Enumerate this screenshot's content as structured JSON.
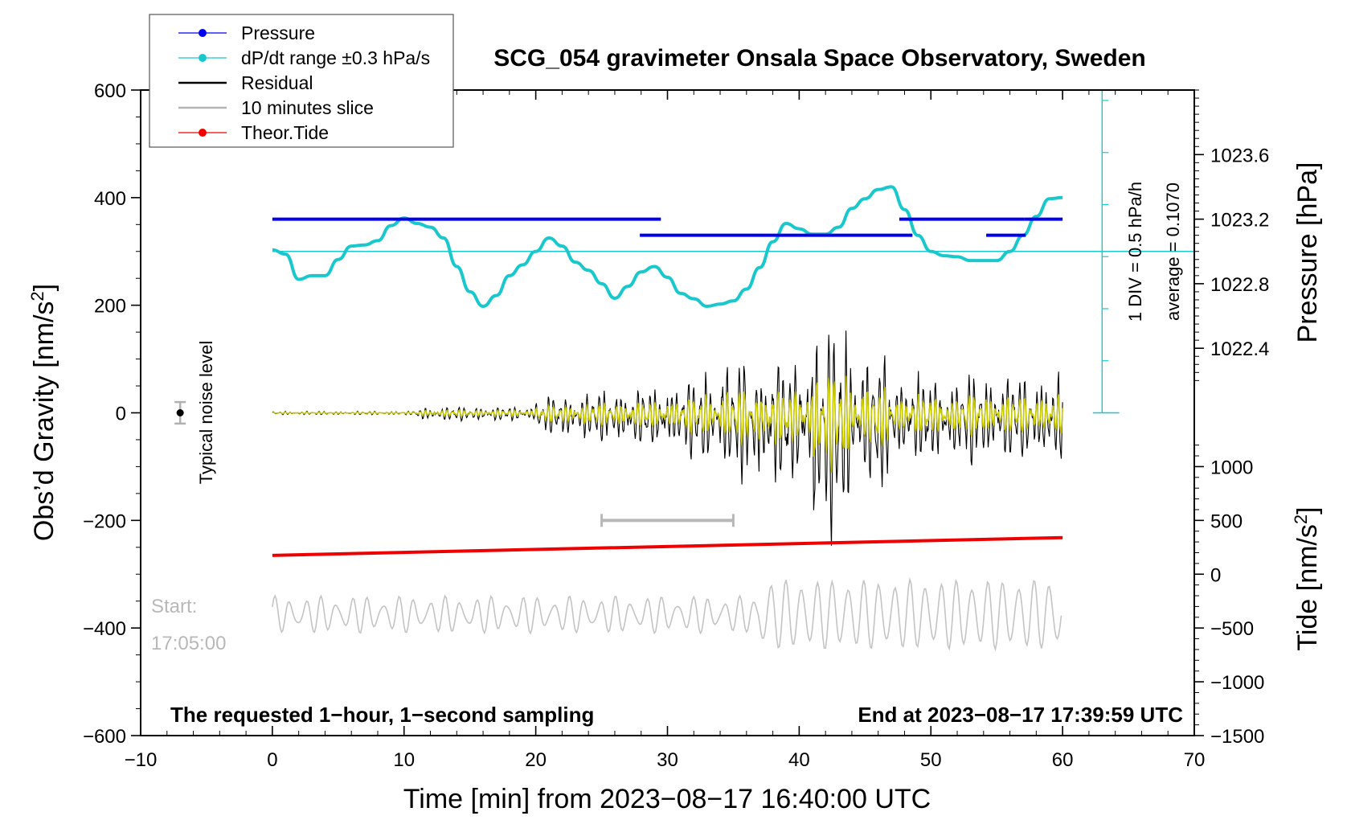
{
  "chart_data": {
    "type": "line",
    "title": "SCG_054 gravimeter Onsala Space Observatory, Sweden",
    "xlabel": "Time [min] from 2023−08−17 16:40:00 UTC",
    "ylabel_left": "Obs’d Gravity [nm/s",
    "ylabel_left_sup": "2",
    "ylabel_left_close": "]",
    "ylabel_right_top": "Pressure [hPa]",
    "ylabel_right_bottom": "Tide [nm/s",
    "ylabel_right_bottom_sup": "2",
    "ylabel_right_bottom_close": "]",
    "xlim": [
      -10,
      70
    ],
    "ylim": [
      -600,
      600
    ],
    "x_ticks": [
      {
        "v": -10,
        "label": "−10"
      },
      {
        "v": 0,
        "label": "0"
      },
      {
        "v": 10,
        "label": "10"
      },
      {
        "v": 20,
        "label": "20"
      },
      {
        "v": 30,
        "label": "30"
      },
      {
        "v": 40,
        "label": "40"
      },
      {
        "v": 50,
        "label": "50"
      },
      {
        "v": 60,
        "label": "60"
      },
      {
        "v": 70,
        "label": "70"
      }
    ],
    "y_ticks": [
      {
        "v": 600,
        "label": "600"
      },
      {
        "v": 400,
        "label": "400"
      },
      {
        "v": 200,
        "label": "200"
      },
      {
        "v": 0,
        "label": "0"
      },
      {
        "v": -200,
        "label": "−200"
      },
      {
        "v": -400,
        "label": "−400"
      },
      {
        "v": -600,
        "label": "−600"
      }
    ],
    "pressure_ticks": [
      {
        "v": 1023.6,
        "label": "1023.6"
      },
      {
        "v": 1023.2,
        "label": "1023.2"
      },
      {
        "v": 1022.8,
        "label": "1022.8"
      },
      {
        "v": 1022.4,
        "label": "1022.4"
      }
    ],
    "pressure_axis": {
      "value_at_y0": 1022.0,
      "value_at_y600": 1024.0
    },
    "tide_ticks": [
      {
        "v": 1000,
        "label": "1000"
      },
      {
        "v": 500,
        "label": "500"
      },
      {
        "v": 0,
        "label": "0"
      },
      {
        "v": -500,
        "label": "−500"
      },
      {
        "v": -1000,
        "label": "−1000"
      },
      {
        "v": -1500,
        "label": "−1500"
      }
    ],
    "tide_axis": {
      "value_at_y0": 1500,
      "value_at_yneg600": -1500
    },
    "legend": [
      {
        "label": "Pressure",
        "color": "#0000ee",
        "marker": true
      },
      {
        "label": "dP/dt range ±0.3 hPa/s",
        "color": "#19c8cc",
        "marker": true
      },
      {
        "label": "Residual",
        "color": "#000000",
        "marker": false
      },
      {
        "label": "10 minutes slice",
        "color": "#b4b4b4",
        "marker": false
      },
      {
        "label": "Theor.Tide",
        "color": "#ee0000",
        "marker": true
      }
    ],
    "series": [
      {
        "name": "Pressure",
        "color": "#0000ee",
        "unit": "hPa",
        "segments": [
          {
            "x": [
              0,
              29.5
            ],
            "value": 1023.2
          },
          {
            "x": [
              27.9,
              48.6
            ],
            "value": 1023.1
          },
          {
            "x": [
              47.6,
              57.1
            ],
            "value": 1023.2
          },
          {
            "x": [
              54.2,
              57.2
            ],
            "value": 1023.1
          },
          {
            "x": [
              57.1,
              60
            ],
            "value": 1023.2
          }
        ]
      },
      {
        "name": "dP/dt range ±0.3 hPa/s",
        "color": "#19c8cc",
        "unit": "nm/s2 (plotted)",
        "x": [
          0,
          1,
          2,
          3,
          4,
          5,
          6,
          7,
          8,
          9,
          10,
          11,
          12,
          13,
          14,
          15,
          16,
          17,
          18,
          19,
          20,
          21,
          22,
          23,
          24,
          25,
          26,
          27,
          28,
          29,
          30,
          31,
          32,
          33,
          34,
          35,
          36,
          37,
          38,
          39,
          40,
          41,
          42,
          43,
          44,
          45,
          46,
          47,
          48,
          49,
          50,
          51,
          52,
          53,
          54,
          55,
          56,
          57,
          58,
          59,
          60
        ],
        "values": [
          303,
          295,
          248,
          255,
          255,
          285,
          310,
          312,
          320,
          348,
          362,
          352,
          345,
          325,
          272,
          225,
          198,
          218,
          255,
          275,
          300,
          325,
          310,
          280,
          265,
          240,
          213,
          235,
          262,
          272,
          252,
          222,
          212,
          198,
          202,
          208,
          230,
          270,
          318,
          352,
          342,
          332,
          332,
          345,
          380,
          398,
          415,
          420,
          378,
          330,
          300,
          292,
          290,
          283,
          283,
          283,
          300,
          330,
          365,
          398,
          400
        ]
      },
      {
        "name": "Theor.Tide",
        "color": "#ee0000",
        "unit": "nm/s2",
        "x": [
          0,
          60
        ],
        "values": [
          -265,
          -232
        ]
      }
    ],
    "noise_marker": {
      "label": "Typical noise level",
      "x": -7,
      "y": 0,
      "error": 20
    },
    "slice_bar": {
      "x": [
        25,
        35
      ],
      "y": -200
    },
    "baseline_pressure": {
      "y": 300
    },
    "div_scale": {
      "label_div": "1 DIV = 0.5 hPa/h",
      "label_avg": "average = 0.1070"
    },
    "start_label": "Start:",
    "start_time": "17:05:00",
    "note_left": "The requested 1−hour, 1−second sampling",
    "note_right": "End at 2023−08−17 17:39:59 UTC"
  }
}
